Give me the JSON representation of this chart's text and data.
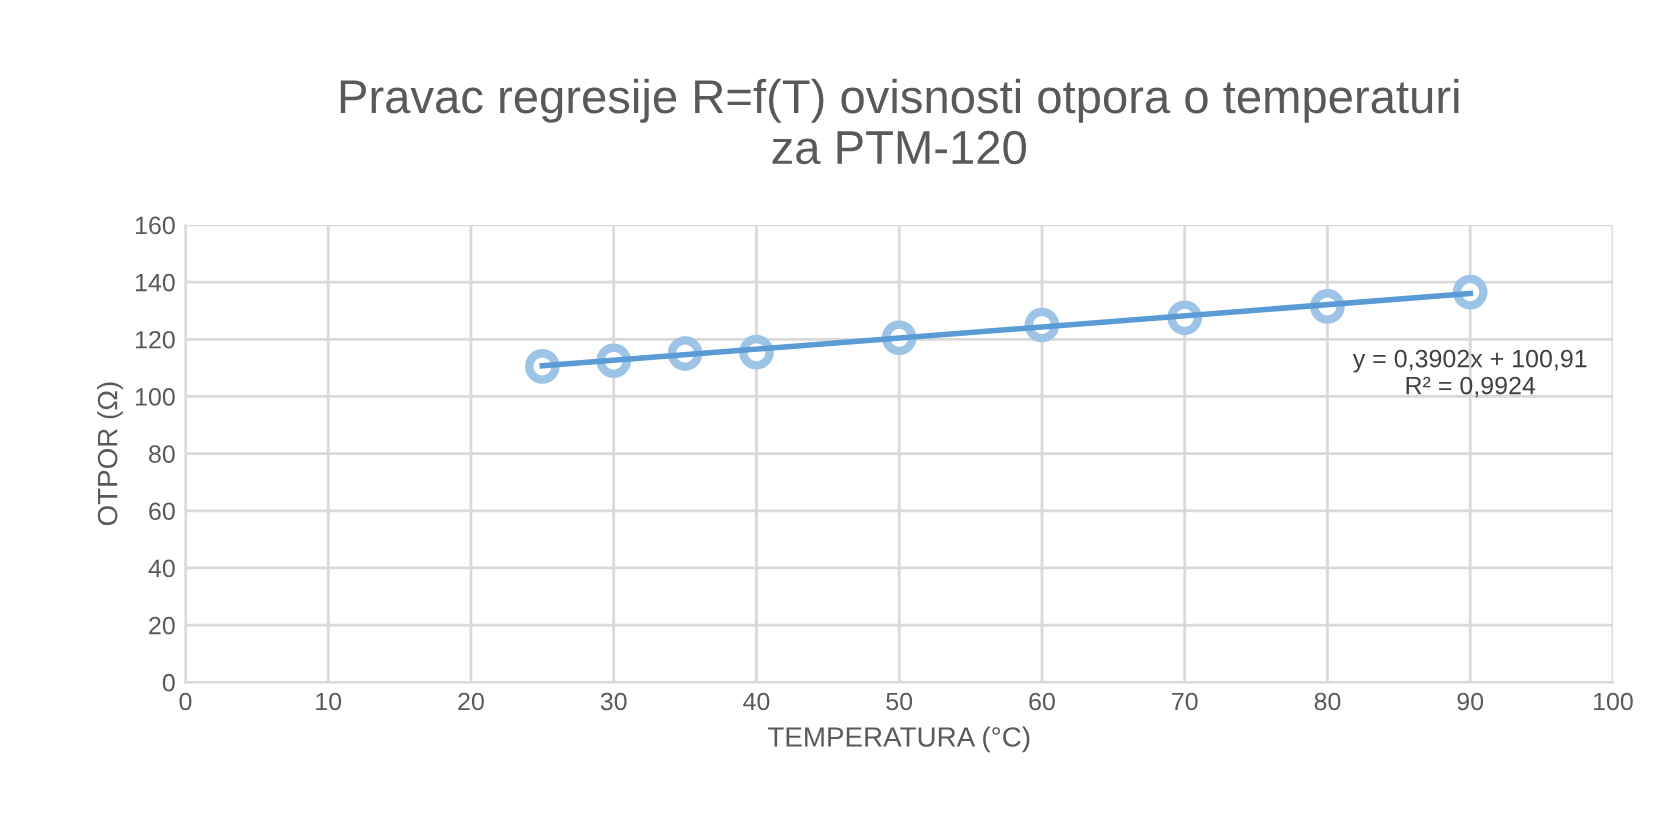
{
  "chart_data": {
    "type": "scatter",
    "title": "Pravac regresije R=f(T) ovisnosti otpora o temperaturi\nza PTM-120",
    "xlabel": "TEMPERATURA (°C)",
    "ylabel": "OTPOR (Ω)",
    "xlim": [
      0,
      100
    ],
    "xticks": [
      0,
      10,
      20,
      30,
      40,
      50,
      60,
      70,
      80,
      90,
      100
    ],
    "ylim": [
      0,
      160
    ],
    "yticks": [
      0,
      20,
      40,
      60,
      80,
      100,
      120,
      140,
      160
    ],
    "grid": true,
    "series": [
      {
        "marker": "circle",
        "color": "#9dc3e6",
        "x": [
          25,
          30,
          35,
          40,
          50,
          60,
          70,
          80,
          90
        ],
        "values": [
          110.5,
          112.5,
          115,
          115.5,
          120.5,
          125,
          127.5,
          131.5,
          136.5
        ]
      },
      {
        "type": "line",
        "color": "#5b9bd5",
        "line_style": "solid",
        "x": [
          25,
          90
        ],
        "values": [
          110.7,
          136.0
        ]
      }
    ],
    "annotations": [
      {
        "text": "y = 0,3902x + 100,91\nR² = 0,9924",
        "x": 90,
        "y": 136.0
      }
    ]
  }
}
